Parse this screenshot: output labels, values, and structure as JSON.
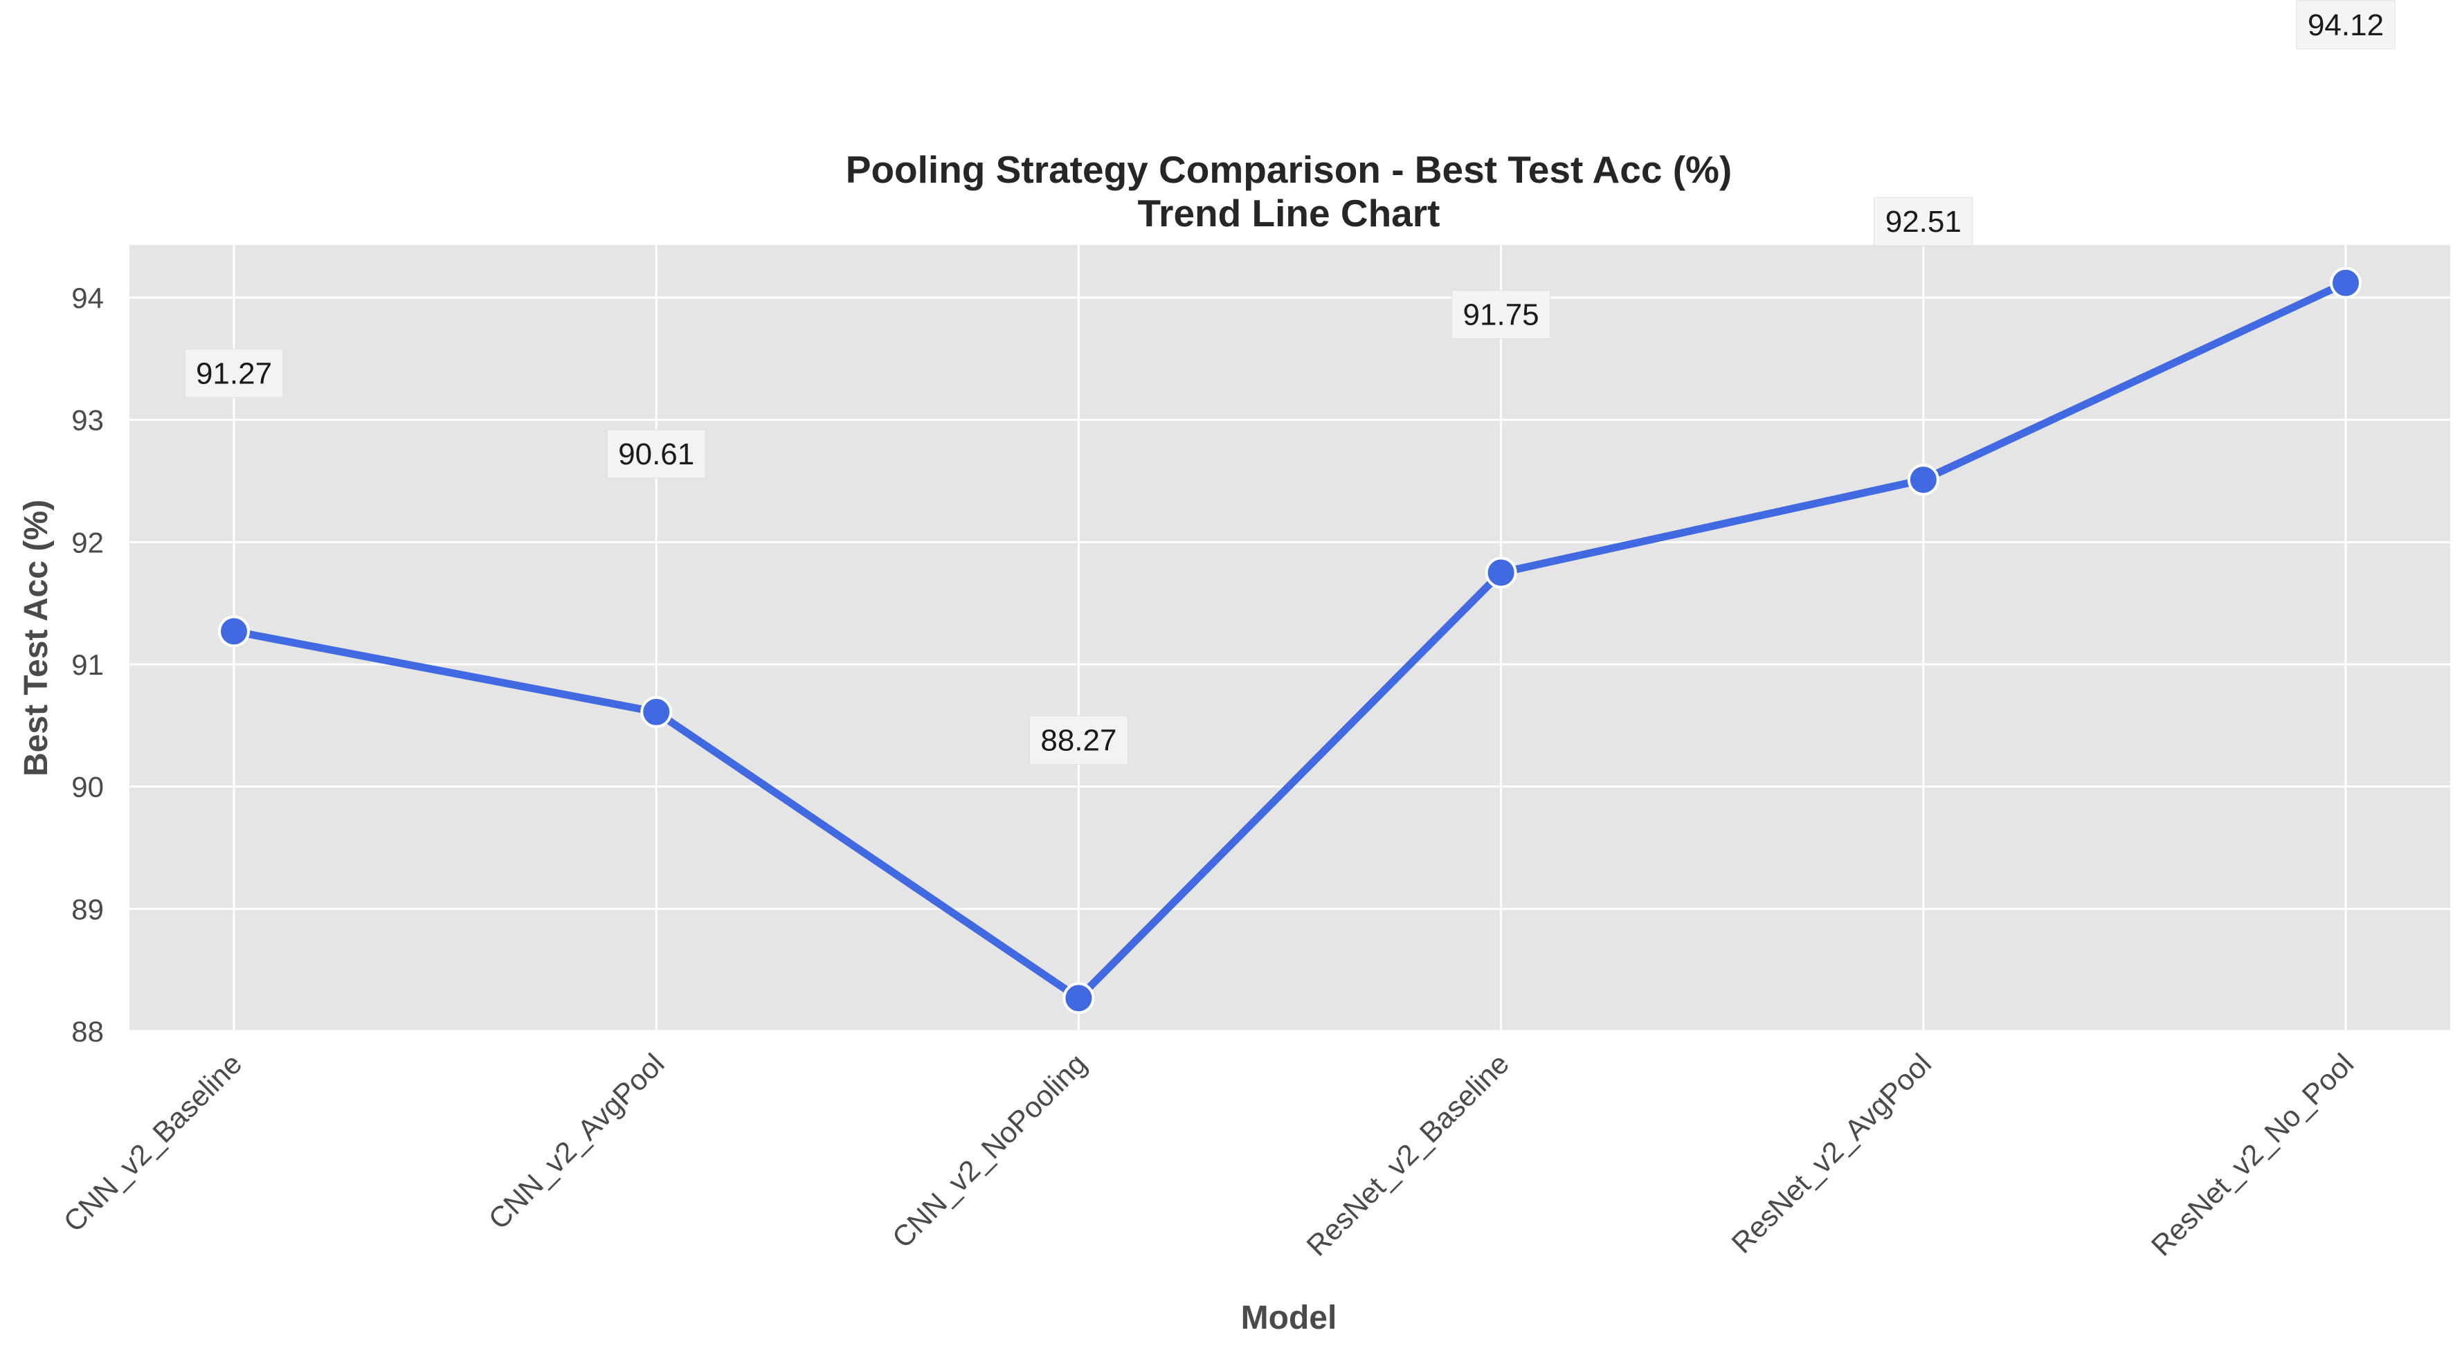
{
  "chart_data": {
    "type": "line",
    "title": "Pooling Strategy Comparison - Best Test Acc (%)",
    "subtitle": "Trend Line Chart",
    "xlabel": "Model",
    "ylabel": "Best Test Acc (%)",
    "categories": [
      "CNN_v2_Baseline",
      "CNN_v2_AvgPool",
      "CNN_v2_NoPooling",
      "ResNet_v2_Baseline",
      "ResNet_v2_AvgPool",
      "ResNet_v2_No_Pool"
    ],
    "series": [
      {
        "values": [
          91.27,
          90.61,
          88.27,
          91.75,
          92.51,
          94.12
        ],
        "color": "#4169e1"
      }
    ],
    "data_labels": [
      "91.27",
      "90.61",
      "88.27",
      "91.75",
      "92.51",
      "94.12"
    ],
    "ylim": [
      88,
      94.43
    ],
    "yticks": [
      88,
      89,
      90,
      91,
      92,
      93,
      94
    ],
    "grid": true,
    "legend": "none",
    "colors": {
      "plot_background": "#e5e5e5",
      "grid": "#ffffff",
      "line": "#4169e1",
      "label_box": "#f5f5f5"
    }
  }
}
